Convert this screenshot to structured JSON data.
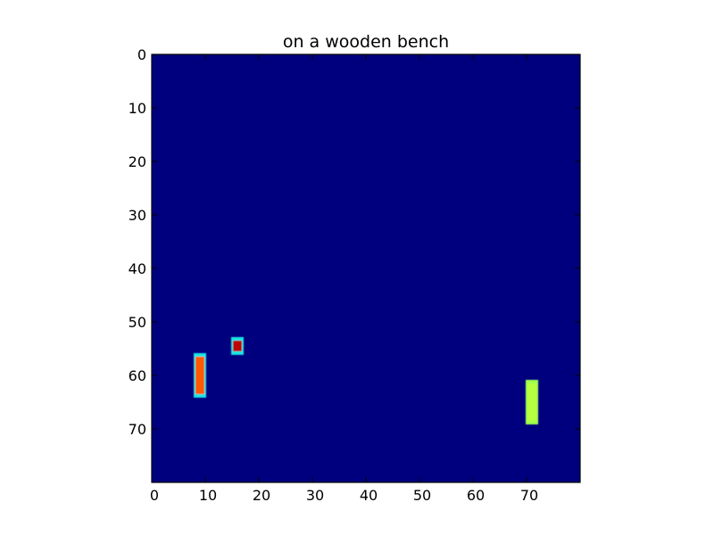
{
  "chart_data": {
    "type": "heatmap",
    "title": "on a wooden bench",
    "xlabel": "",
    "ylabel": "",
    "xlim": [
      0,
      80
    ],
    "ylim": [
      80,
      0
    ],
    "xticks": [
      0,
      10,
      20,
      30,
      40,
      50,
      60,
      70
    ],
    "yticks": [
      0,
      10,
      20,
      30,
      40,
      50,
      60,
      70
    ],
    "grid": false,
    "colormap": "jet",
    "background_value": 0.0,
    "background_color": "#00007f",
    "regions": [
      {
        "x": [
          8,
          9
        ],
        "y": [
          56,
          63
        ],
        "value": 0.8,
        "fill": "#ff5a00",
        "edge": "#1ee4e4"
      },
      {
        "x": [
          15,
          16
        ],
        "y": [
          53,
          55
        ],
        "value": 0.85,
        "fill": "#c00000",
        "edge": "#1ee4e4"
      },
      {
        "x": [
          70,
          71
        ],
        "y": [
          61,
          68
        ],
        "value": 0.6,
        "fill": "#b8ff40",
        "edge": "#a0ff50"
      }
    ]
  }
}
